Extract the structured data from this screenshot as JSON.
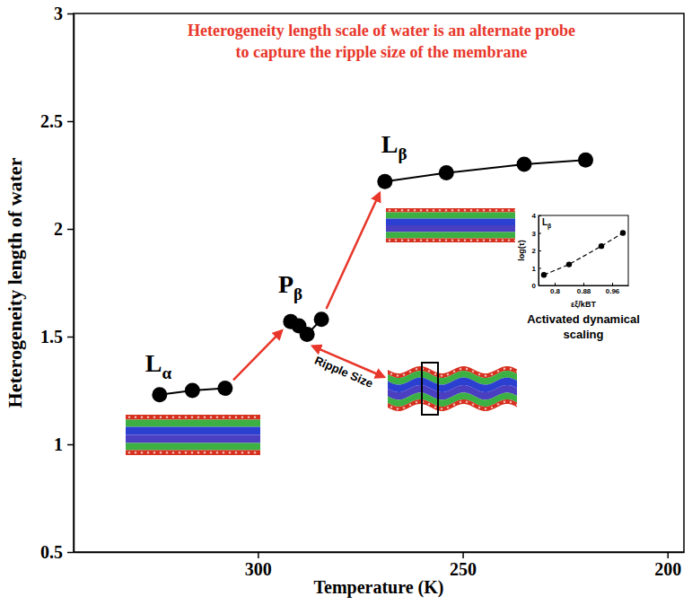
{
  "chart_data": [
    {
      "type": "line",
      "title": "Heterogeneity length scale of water is an alternate probe to capture the ripple size of the membrane",
      "x_label": "Temperature (K)",
      "y_label": "Heterogeneity length of water",
      "xlim": [
        345,
        196
      ],
      "xticks": [
        300,
        250,
        200
      ],
      "ylim": [
        0.5,
        3
      ],
      "yticks": [
        0.5,
        1,
        1.5,
        2,
        2.5,
        3
      ],
      "color": "#000000",
      "marker": "circle",
      "series": [
        {
          "name": "Lα",
          "x": [
            324,
            316,
            308
          ],
          "values": [
            1.23,
            1.25,
            1.26
          ]
        },
        {
          "name": "Pβ",
          "x": [
            292,
            290,
            288,
            284.5
          ],
          "values": [
            1.57,
            1.55,
            1.51,
            1.58
          ]
        },
        {
          "name": "Lβ",
          "x": [
            269,
            254,
            235,
            220
          ],
          "values": [
            2.22,
            2.26,
            2.3,
            2.32
          ]
        }
      ],
      "annotations": [
        "Ripple Size"
      ]
    },
    {
      "type": "scatter",
      "title": "Lβ",
      "x_label": "εξ/kBT",
      "y_label": "log(τ)",
      "xlim": [
        0.755,
        1.005
      ],
      "xticks": [
        0.8,
        0.88,
        0.96
      ],
      "ylim": [
        0,
        4
      ],
      "yticks": [
        0,
        1,
        2,
        3,
        4
      ],
      "color": "#000000",
      "series": [
        {
          "x": [
            0.77,
            0.84,
            0.93,
            0.99
          ],
          "values": [
            0.6,
            1.2,
            2.25,
            3.0
          ],
          "marker": "circle",
          "line_style": "dashed"
        }
      ],
      "annotations": [
        "Activated dynamical scaling"
      ]
    }
  ]
}
